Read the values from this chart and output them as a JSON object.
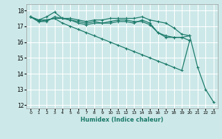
{
  "xlabel": "Humidex (Indice chaleur)",
  "bg_color": "#cde8e8",
  "grid_color": "#ffffff",
  "line_color": "#1a7a6a",
  "xlim": [
    -0.5,
    23.5
  ],
  "ylim": [
    11.8,
    18.4
  ],
  "yticks": [
    12,
    13,
    14,
    15,
    16,
    17,
    18
  ],
  "xticks": [
    0,
    1,
    2,
    3,
    4,
    5,
    6,
    7,
    8,
    9,
    10,
    11,
    12,
    13,
    14,
    15,
    16,
    17,
    18,
    19,
    20,
    21,
    22,
    23
  ],
  "series": [
    [
      17.6,
      17.4,
      17.6,
      17.9,
      17.5,
      17.5,
      17.4,
      17.3,
      17.4,
      17.4,
      17.5,
      17.5,
      17.5,
      17.5,
      17.6,
      17.4,
      17.3,
      17.2,
      16.9,
      16.5,
      16.4,
      14.4,
      13.0,
      12.2
    ],
    [
      17.6,
      17.4,
      17.4,
      17.5,
      17.5,
      17.4,
      17.3,
      17.2,
      17.3,
      17.2,
      17.3,
      17.4,
      17.4,
      17.3,
      17.3,
      17.1,
      16.6,
      16.4,
      16.3,
      16.3,
      16.4,
      null,
      null,
      null
    ],
    [
      17.6,
      17.3,
      17.3,
      17.6,
      17.5,
      17.4,
      17.2,
      17.1,
      17.2,
      17.2,
      17.2,
      17.3,
      17.3,
      17.2,
      17.4,
      17.2,
      16.6,
      16.3,
      16.3,
      16.3,
      16.1,
      null,
      null,
      null
    ],
    [
      17.6,
      17.3,
      17.4,
      17.5,
      17.2,
      17.0,
      16.8,
      16.6,
      16.4,
      16.2,
      16.0,
      15.8,
      15.6,
      15.4,
      15.2,
      15.0,
      14.8,
      14.6,
      14.4,
      14.2,
      16.1,
      null,
      null,
      null
    ]
  ]
}
